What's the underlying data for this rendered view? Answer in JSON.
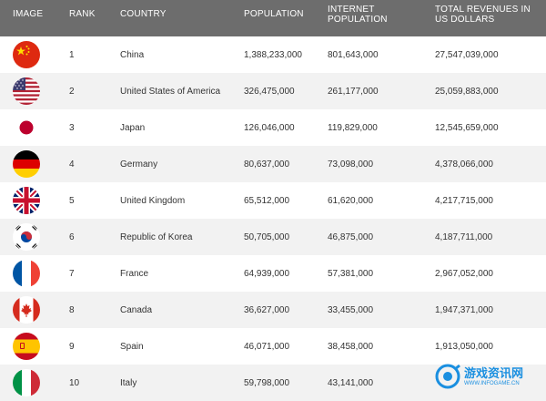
{
  "header": {
    "image": "IMAGE",
    "rank": "RANK",
    "country": "COUNTRY",
    "population": "POPULATION",
    "internet_population": "INTERNET POPULATION",
    "total_revenues": "TOTAL REVENUES IN US DOLLARS"
  },
  "rows": [
    {
      "rank": "1",
      "country": "China",
      "population": "1,388,233,000",
      "internet_population": "801,643,000",
      "revenues": "27,547,039,000",
      "flag_icon": "china-flag-icon"
    },
    {
      "rank": "2",
      "country": "United States of America",
      "population": "326,475,000",
      "internet_population": "261,177,000",
      "revenues": "25,059,883,000",
      "flag_icon": "usa-flag-icon"
    },
    {
      "rank": "3",
      "country": "Japan",
      "population": "126,046,000",
      "internet_population": "119,829,000",
      "revenues": "12,545,659,000",
      "flag_icon": "japan-flag-icon"
    },
    {
      "rank": "4",
      "country": "Germany",
      "population": "80,637,000",
      "internet_population": "73,098,000",
      "revenues": "4,378,066,000",
      "flag_icon": "germany-flag-icon"
    },
    {
      "rank": "5",
      "country": "United Kingdom",
      "population": "65,512,000",
      "internet_population": "61,620,000",
      "revenues": "4,217,715,000",
      "flag_icon": "uk-flag-icon"
    },
    {
      "rank": "6",
      "country": "Republic of Korea",
      "population": "50,705,000",
      "internet_population": "46,875,000",
      "revenues": "4,187,711,000",
      "flag_icon": "korea-flag-icon"
    },
    {
      "rank": "7",
      "country": "France",
      "population": "64,939,000",
      "internet_population": "57,381,000",
      "revenues": "2,967,052,000",
      "flag_icon": "france-flag-icon"
    },
    {
      "rank": "8",
      "country": "Canada",
      "population": "36,627,000",
      "internet_population": "33,455,000",
      "revenues": "1,947,371,000",
      "flag_icon": "canada-flag-icon"
    },
    {
      "rank": "9",
      "country": "Spain",
      "population": "46,071,000",
      "internet_population": "38,458,000",
      "revenues": "1,913,050,000",
      "flag_icon": "spain-flag-icon"
    },
    {
      "rank": "10",
      "country": "Italy",
      "population": "59,798,000",
      "internet_population": "43,141,000",
      "revenues": "",
      "flag_icon": "italy-flag-icon"
    }
  ],
  "watermark": {
    "name": "游戏资讯网",
    "url": "WWW.INFOGAME.CN",
    "logo_icon": "infogame-logo-icon"
  },
  "colors": {
    "header_bg": "#6d6d6d",
    "row_alt_bg": "#f2f2f2",
    "watermark_blue": "#1a8fe0"
  }
}
